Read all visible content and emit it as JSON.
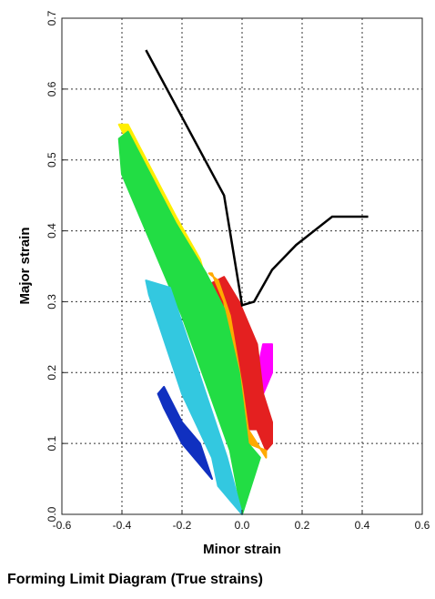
{
  "caption": "Forming Limit Diagram (True strains)",
  "chart_data": {
    "type": "scatter",
    "title": "",
    "xlabel": "Minor strain",
    "ylabel": "Major strain",
    "xlim": [
      -0.6,
      0.6
    ],
    "ylim": [
      0,
      0.7
    ],
    "xticks": [
      -0.6,
      -0.4,
      -0.2,
      0.0,
      0.2,
      0.4,
      0.6
    ],
    "yticks": [
      0.0,
      0.1,
      0.2,
      0.3,
      0.4,
      0.5,
      0.6,
      0.7
    ],
    "xtick_labels": [
      "-0.6",
      "-0.4",
      "-0.2",
      "0.0",
      "0.2",
      "0.4",
      "0.6"
    ],
    "ytick_labels": [
      "0.0",
      "0.1",
      "0.2",
      "0.3",
      "0.4",
      "0.5",
      "0.6",
      "0.7"
    ],
    "grid": true,
    "series": [
      {
        "kind": "line",
        "color": "#000000",
        "x": [
          -0.32,
          -0.06,
          0.0,
          0.04,
          0.1,
          0.18,
          0.3,
          0.42
        ],
        "y": [
          0.655,
          0.45,
          0.295,
          0.3,
          0.345,
          0.38,
          0.42,
          0.42
        ]
      },
      {
        "kind": "scatter-region",
        "color": "#ff00ff",
        "points": [
          [
            0.07,
            0.24
          ],
          [
            0.1,
            0.24
          ],
          [
            0.1,
            0.2
          ],
          [
            0.06,
            0.16
          ],
          [
            0.05,
            0.2
          ]
        ]
      },
      {
        "kind": "scatter-region",
        "color": "#e42020",
        "points": [
          [
            -0.13,
            0.32
          ],
          [
            -0.06,
            0.335
          ],
          [
            -0.01,
            0.3
          ],
          [
            0.02,
            0.27
          ],
          [
            0.05,
            0.24
          ],
          [
            0.07,
            0.17
          ],
          [
            0.1,
            0.13
          ],
          [
            0.1,
            0.1
          ],
          [
            0.08,
            0.09
          ],
          [
            0.05,
            0.12
          ],
          [
            0.0,
            0.12
          ],
          [
            -0.08,
            0.22
          ],
          [
            -0.12,
            0.3
          ]
        ]
      },
      {
        "kind": "scatter-region",
        "color": "#ffaa00",
        "points": [
          [
            -0.11,
            0.34
          ],
          [
            -0.08,
            0.33
          ],
          [
            -0.04,
            0.28
          ],
          [
            0.0,
            0.18
          ],
          [
            0.02,
            0.12
          ],
          [
            0.08,
            0.08
          ],
          [
            0.08,
            0.09
          ],
          [
            0.02,
            0.1
          ],
          [
            -0.02,
            0.2
          ],
          [
            -0.06,
            0.3
          ],
          [
            -0.1,
            0.34
          ]
        ]
      },
      {
        "kind": "scatter-region",
        "color": "#ffee00",
        "points": [
          [
            -0.41,
            0.55
          ],
          [
            -0.38,
            0.55
          ],
          [
            -0.22,
            0.42
          ],
          [
            -0.14,
            0.36
          ],
          [
            -0.12,
            0.33
          ],
          [
            -0.2,
            0.4
          ],
          [
            -0.35,
            0.5
          ]
        ]
      },
      {
        "kind": "scatter-region",
        "color": "#22dd44",
        "points": [
          [
            -0.41,
            0.53
          ],
          [
            -0.38,
            0.54
          ],
          [
            -0.22,
            0.41
          ],
          [
            -0.12,
            0.34
          ],
          [
            -0.06,
            0.29
          ],
          [
            -0.01,
            0.2
          ],
          [
            0.02,
            0.1
          ],
          [
            0.06,
            0.08
          ],
          [
            0.0,
            0.0
          ],
          [
            -0.04,
            0.09
          ],
          [
            -0.2,
            0.28
          ],
          [
            -0.4,
            0.48
          ]
        ]
      },
      {
        "kind": "scatter-region",
        "color": "#33c8e0",
        "points": [
          [
            -0.32,
            0.33
          ],
          [
            -0.24,
            0.32
          ],
          [
            -0.16,
            0.22
          ],
          [
            -0.05,
            0.08
          ],
          [
            0.0,
            0.0
          ],
          [
            -0.08,
            0.04
          ],
          [
            -0.1,
            0.08
          ],
          [
            -0.2,
            0.17
          ],
          [
            -0.31,
            0.31
          ]
        ]
      },
      {
        "kind": "scatter-region",
        "color": "#1030c0",
        "points": [
          [
            -0.28,
            0.17
          ],
          [
            -0.26,
            0.18
          ],
          [
            -0.2,
            0.13
          ],
          [
            -0.14,
            0.1
          ],
          [
            -0.1,
            0.05
          ],
          [
            -0.12,
            0.06
          ],
          [
            -0.2,
            0.1
          ],
          [
            -0.26,
            0.15
          ]
        ]
      }
    ]
  }
}
